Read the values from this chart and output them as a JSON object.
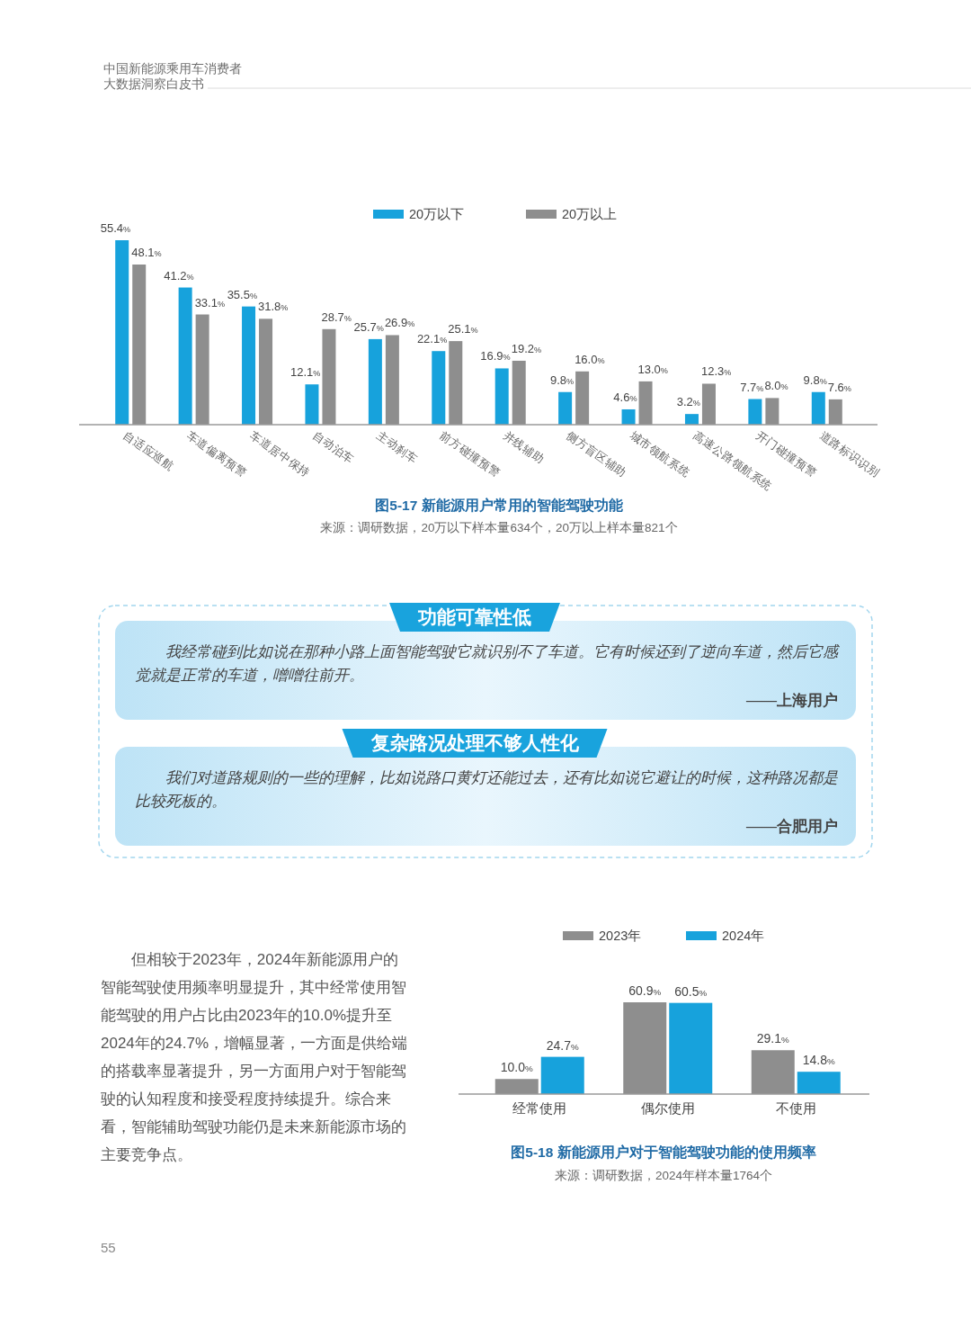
{
  "chart_data": [
    {
      "type": "other",
      "annotations": [
        "中国新能源乘用车消费者",
        "大数据洞察白皮书"
      ]
    },
    {
      "type": "bar",
      "title": "图5-17 新能源用户常用的智能驾驶功能",
      "annotations": [
        "来源：调研数据，20万以下样本量634个，20万以上样本量821个"
      ],
      "categories": [
        "自适应巡航",
        "车道偏离预警",
        "车道居中保持",
        "自动泊车",
        "主动刹车",
        "前方碰撞预警",
        "并线辅助",
        "侧方盲区辅助",
        "城市领航系统",
        "高速公路领航系统",
        "开门碰撞预警",
        "道路标识识别"
      ],
      "series": [
        {
          "name": "20万以下",
          "color": "#17a2dc",
          "values": [
            55.4,
            41.2,
            35.5,
            12.1,
            25.7,
            22.1,
            16.9,
            9.8,
            4.6,
            3.2,
            7.7,
            9.8
          ],
          "value_labels": [
            "55.4%",
            "41.2%",
            "35.5%",
            "12.1%",
            "25.7%",
            "22.1%",
            "16.9%",
            "9.8%",
            "4.6%",
            "3.2%",
            "7.7%",
            "9.8%"
          ]
        },
        {
          "name": "20万以上",
          "color": "#8e8e8e",
          "values": [
            48.1,
            33.1,
            31.8,
            28.7,
            26.9,
            25.1,
            19.2,
            16.0,
            13.0,
            12.3,
            8.0,
            7.6
          ],
          "value_labels": [
            "48.1%",
            "33.1%",
            "31.8%",
            "28.7%",
            "26.9%",
            "25.1%",
            "19.2%",
            "16.0%",
            "13.0%",
            "12.3%",
            "8.0%",
            "7.6%"
          ]
        }
      ],
      "legend": "top",
      "tick_labels": "x"
    },
    {
      "type": "other",
      "annotations": [
        "功能可靠性低",
        "我经常碰到比如说在那种小路上面智能驾驶它就识别不了车道。它有时候还到了逆向车道，然后它感觉就是正常的车道，噌噌往前开。",
        "——上海用户",
        "复杂路况处理不够人性化",
        "我们对道路规则的一些的理解，比如说路口黄灯还能过去，还有比如说它避让的时候，这种路况都是比较死板的。",
        "——合肥用户"
      ]
    },
    {
      "type": "other",
      "annotations": [
        "但相较于2023年，2024年新能源用户的智能驾驶使用频率明显提升，其中经常使用智能驾驶的用户占比由2023年的10.0%提升至2024年的24.7%，增幅显著，一方面是供给端的搭载率显著提升，另一方面用户对于智能驾驶的认知程度和接受程度持续提升。综合来看，智能辅助驾驶功能仍是未来新能源市场的主要竞争点。"
      ]
    },
    {
      "type": "bar",
      "title": "图5-18 新能源用户对于智能驾驶功能的使用频率",
      "annotations": [
        "来源：调研数据，2024年样本量1764个"
      ],
      "categories": [
        "经常使用",
        "偶尔使用",
        "不使用"
      ],
      "series": [
        {
          "name": "2023年",
          "color": "#8e8e8e",
          "values": [
            10.0,
            60.9,
            29.1
          ],
          "value_labels": [
            "10.0%",
            "60.9%",
            "29.1%"
          ]
        },
        {
          "name": "2024年",
          "color": "#17a2dc",
          "values": [
            24.7,
            60.5,
            14.8
          ],
          "value_labels": [
            "24.7%",
            "60.5%",
            "14.8%"
          ]
        }
      ],
      "legend": "top",
      "tick_labels": "x"
    },
    {
      "type": "other",
      "annotations": [
        "55"
      ]
    }
  ]
}
